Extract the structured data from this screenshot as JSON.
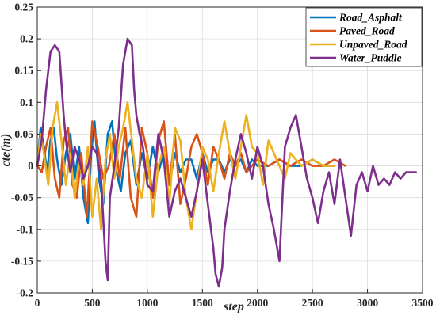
{
  "chart_data": {
    "type": "line",
    "title": "",
    "xlabel": "step",
    "ylabel": "cte(m)",
    "xlim": [
      0,
      3500
    ],
    "ylim": [
      -0.2,
      0.25
    ],
    "xticks": [
      "0",
      "500",
      "1000",
      "1500",
      "2000",
      "2500",
      "3000",
      "3500"
    ],
    "yticks": [
      "-0.2",
      "-0.15",
      "-0.1",
      "-0.05",
      "0",
      "0.05",
      "0.1",
      "0.15",
      "0.2",
      "0.25"
    ],
    "grid": true,
    "legend_position": "top-right",
    "series": [
      {
        "name": "Road_Asphalt",
        "color": "#0072BD",
        "x": [
          0,
          30,
          60,
          90,
          120,
          150,
          180,
          220,
          260,
          300,
          340,
          380,
          420,
          460,
          490,
          520,
          560,
          600,
          640,
          680,
          720,
          760,
          800,
          850,
          900,
          950,
          1000,
          1050,
          1100,
          1150,
          1200,
          1250,
          1300,
          1350,
          1400,
          1450,
          1500,
          1550,
          1600,
          1650,
          1700,
          1750,
          1800,
          1850,
          1900,
          1950,
          2000,
          2100,
          2200,
          2300,
          2400,
          2500,
          2600,
          2700
        ],
        "y": [
          0,
          0.06,
          0.03,
          -0.01,
          0.04,
          0.06,
          0.01,
          -0.03,
          0.02,
          0.05,
          -0.02,
          0.03,
          -0.05,
          -0.09,
          0.02,
          0.07,
          -0.02,
          -0.06,
          0.05,
          0.07,
          -0.01,
          -0.04,
          0.02,
          0.04,
          -0.03,
          0.02,
          -0.02,
          0.03,
          -0.01,
          0.02,
          -0.03,
          0.02,
          -0.01,
          0.01,
          0.01,
          -0.02,
          0.02,
          -0.01,
          0.01,
          0.01,
          -0.01,
          0.01,
          0.0,
          0.01,
          -0.01,
          0.01,
          0.0,
          0.0,
          0.01,
          0.0,
          0.0,
          0.01,
          0.0,
          0.0
        ]
      },
      {
        "name": "Paved_Road",
        "color": "#D95319",
        "x": [
          0,
          40,
          80,
          120,
          160,
          200,
          240,
          280,
          320,
          360,
          400,
          450,
          500,
          550,
          600,
          650,
          700,
          750,
          800,
          850,
          900,
          950,
          1000,
          1050,
          1100,
          1150,
          1200,
          1250,
          1300,
          1350,
          1400,
          1450,
          1500,
          1550,
          1600,
          1650,
          1700,
          1750,
          1800,
          1850,
          1900,
          2000,
          2100,
          2200,
          2300,
          2400,
          2500,
          2600,
          2700,
          2800
        ],
        "y": [
          0,
          -0.01,
          0.03,
          0.06,
          -0.02,
          -0.05,
          0.04,
          0.06,
          -0.03,
          -0.05,
          0.02,
          -0.08,
          0.07,
          0.03,
          -0.02,
          0.0,
          0.05,
          -0.02,
          0.06,
          -0.05,
          -0.08,
          0.06,
          0.02,
          -0.05,
          0.04,
          0.07,
          -0.03,
          0.05,
          -0.06,
          -0.02,
          0.03,
          0.05,
          0.02,
          -0.03,
          0.03,
          0.01,
          -0.02,
          0.02,
          0.0,
          0.02,
          -0.01,
          0.01,
          0.0,
          0.01,
          0.0,
          0.01,
          0.0,
          0.0,
          0.01,
          0.0
        ]
      },
      {
        "name": "Unpaved_Road",
        "color": "#EDB120",
        "x": [
          0,
          30,
          60,
          100,
          140,
          180,
          220,
          260,
          300,
          340,
          380,
          420,
          460,
          500,
          540,
          580,
          620,
          660,
          700,
          740,
          780,
          820,
          860,
          900,
          950,
          1000,
          1050,
          1100,
          1150,
          1200,
          1250,
          1300,
          1350,
          1400,
          1450,
          1500,
          1550,
          1600,
          1650,
          1700,
          1750,
          1800,
          1850,
          1900,
          1950,
          2000,
          2050,
          2100,
          2150,
          2200,
          2250,
          2300,
          2400,
          2500,
          2600,
          2700
        ],
        "y": [
          0,
          0.05,
          0.02,
          -0.03,
          0.06,
          0.1,
          0.04,
          -0.03,
          0.02,
          -0.05,
          0.01,
          -0.03,
          0.03,
          -0.08,
          -0.02,
          -0.1,
          0.01,
          0.05,
          -0.02,
          0.03,
          0.06,
          0.1,
          0.04,
          -0.02,
          -0.05,
          0.02,
          -0.08,
          0.0,
          0.03,
          -0.06,
          0.06,
          0.04,
          -0.05,
          -0.1,
          -0.04,
          0.03,
          0.01,
          -0.04,
          0.02,
          0.07,
          0.02,
          -0.02,
          0.03,
          0.08,
          0.03,
          0.02,
          -0.03,
          0.04,
          0.02,
          0.0,
          -0.02,
          0.02,
          0.0,
          0.01,
          0.0,
          0.0
        ]
      },
      {
        "name": "Water_Puddle",
        "color": "#7E2F8E",
        "x": [
          0,
          40,
          80,
          120,
          160,
          200,
          240,
          260,
          300,
          340,
          380,
          420,
          460,
          500,
          540,
          580,
          620,
          640,
          660,
          700,
          740,
          780,
          820,
          860,
          880,
          900,
          930,
          960,
          1000,
          1050,
          1100,
          1150,
          1200,
          1250,
          1300,
          1350,
          1400,
          1450,
          1500,
          1550,
          1600,
          1620,
          1650,
          1680,
          1700,
          1750,
          1800,
          1850,
          1900,
          1950,
          2000,
          2050,
          2100,
          2150,
          2200,
          2250,
          2300,
          2350,
          2400,
          2450,
          2500,
          2550,
          2600,
          2650,
          2700,
          2750,
          2800,
          2850,
          2900,
          2950,
          3000,
          3050,
          3100,
          3150,
          3200,
          3250,
          3300,
          3350,
          3400,
          3440
        ],
        "y": [
          0,
          0.04,
          0.12,
          0.18,
          0.19,
          0.18,
          0.08,
          0.04,
          -0.01,
          0.03,
          0.01,
          -0.02,
          0.0,
          0.03,
          0.02,
          -0.02,
          -0.15,
          -0.18,
          -0.05,
          0.0,
          0.06,
          0.16,
          0.2,
          0.19,
          0.12,
          0.08,
          0.05,
          0.03,
          -0.03,
          -0.04,
          0.05,
          0.01,
          -0.08,
          -0.04,
          -0.02,
          -0.05,
          -0.08,
          -0.04,
          0.01,
          -0.06,
          -0.13,
          -0.17,
          -0.19,
          -0.16,
          -0.1,
          -0.04,
          0.01,
          0.05,
          0.02,
          -0.02,
          0.03,
          0.0,
          -0.06,
          -0.1,
          -0.15,
          0.03,
          0.06,
          0.08,
          0.03,
          -0.02,
          -0.05,
          -0.09,
          -0.04,
          -0.01,
          -0.06,
          0.01,
          -0.05,
          -0.11,
          -0.03,
          -0.01,
          -0.04,
          0.0,
          -0.03,
          -0.02,
          -0.03,
          -0.01,
          -0.02,
          -0.01,
          -0.01,
          -0.01
        ]
      }
    ]
  }
}
